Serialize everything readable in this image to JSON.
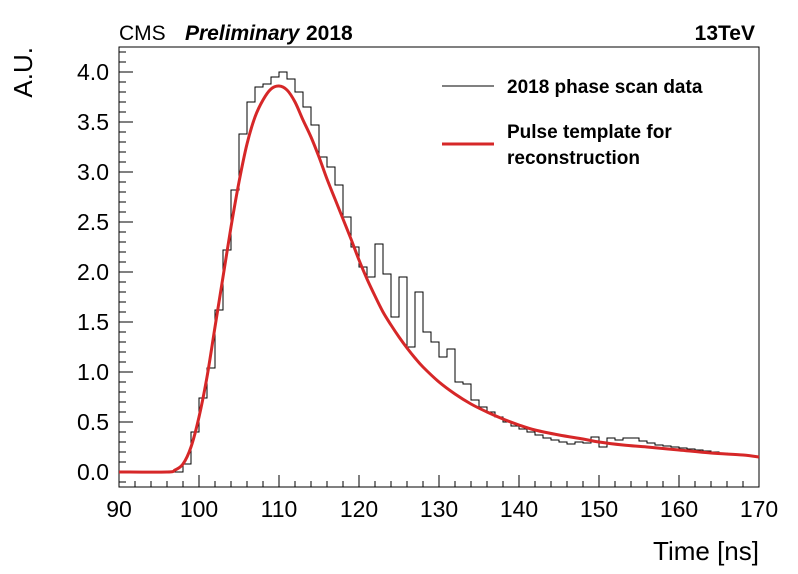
{
  "header": {
    "experiment": "CMS",
    "status": "Preliminary",
    "year": "2018",
    "energy": "13TeV"
  },
  "chart_data": {
    "type": "line",
    "xlabel": "Time [ns]",
    "ylabel": "A.U.",
    "xlim": [
      90,
      170
    ],
    "ylim": [
      -0.15,
      4.25
    ],
    "x_ticks": [
      "90",
      "100",
      "110",
      "120",
      "130",
      "140",
      "150",
      "160",
      "170"
    ],
    "y_ticks": [
      "0.0",
      "0.5",
      "1.0",
      "1.5",
      "2.0",
      "2.5",
      "3.0",
      "3.5",
      "4.0"
    ],
    "legend_position": "top-right",
    "series": [
      {
        "name": "2018 phase scan data",
        "style": "step",
        "color": "#000000",
        "bin_width": 1,
        "x_start": 90,
        "values": [
          0,
          0,
          0,
          0,
          0,
          0,
          0,
          0,
          0.08,
          0.4,
          0.74,
          1.04,
          1.62,
          2.22,
          2.82,
          3.38,
          3.7,
          3.85,
          3.88,
          3.95,
          4.0,
          3.93,
          3.8,
          3.65,
          3.47,
          3.15,
          3.05,
          2.87,
          2.55,
          2.25,
          2.05,
          1.95,
          2.28,
          1.98,
          1.55,
          1.95,
          1.25,
          1.8,
          1.4,
          1.3,
          1.15,
          1.23,
          0.9,
          0.88,
          0.72,
          0.65,
          0.6,
          0.55,
          0.5,
          0.46,
          0.43,
          0.4,
          0.37,
          0.34,
          0.32,
          0.3,
          0.28,
          0.3,
          0.29,
          0.35,
          0.25,
          0.34,
          0.32,
          0.34,
          0.34,
          0.31,
          0.29,
          0.27,
          0.26,
          0.25,
          0.24,
          0.23,
          0.22,
          0.21,
          0.2,
          0.19,
          0.18,
          0.17,
          0.17,
          0.16
        ]
      },
      {
        "name": "Pulse template for reconstruction",
        "style": "line",
        "color": "#d62728",
        "points": [
          [
            90,
            0
          ],
          [
            96,
            0
          ],
          [
            97,
            0.02
          ],
          [
            98,
            0.08
          ],
          [
            99,
            0.25
          ],
          [
            100,
            0.55
          ],
          [
            101,
            0.95
          ],
          [
            102,
            1.45
          ],
          [
            103,
            1.95
          ],
          [
            104,
            2.45
          ],
          [
            105,
            2.9
          ],
          [
            106,
            3.28
          ],
          [
            107,
            3.55
          ],
          [
            108,
            3.72
          ],
          [
            109,
            3.83
          ],
          [
            110,
            3.86
          ],
          [
            111,
            3.82
          ],
          [
            112,
            3.7
          ],
          [
            113,
            3.52
          ],
          [
            114,
            3.35
          ],
          [
            115,
            3.15
          ],
          [
            116,
            2.93
          ],
          [
            117,
            2.73
          ],
          [
            118,
            2.53
          ],
          [
            119,
            2.33
          ],
          [
            120,
            2.12
          ],
          [
            121,
            1.93
          ],
          [
            122,
            1.76
          ],
          [
            123,
            1.6
          ],
          [
            124,
            1.47
          ],
          [
            125,
            1.35
          ],
          [
            126,
            1.24
          ],
          [
            127,
            1.14
          ],
          [
            128,
            1.05
          ],
          [
            130,
            0.9
          ],
          [
            132,
            0.78
          ],
          [
            134,
            0.68
          ],
          [
            136,
            0.6
          ],
          [
            138,
            0.53
          ],
          [
            140,
            0.47
          ],
          [
            142,
            0.42
          ],
          [
            145,
            0.37
          ],
          [
            148,
            0.33
          ],
          [
            150,
            0.3
          ],
          [
            153,
            0.27
          ],
          [
            156,
            0.25
          ],
          [
            160,
            0.22
          ],
          [
            164,
            0.19
          ],
          [
            168,
            0.17
          ],
          [
            170,
            0.15
          ]
        ]
      }
    ]
  }
}
